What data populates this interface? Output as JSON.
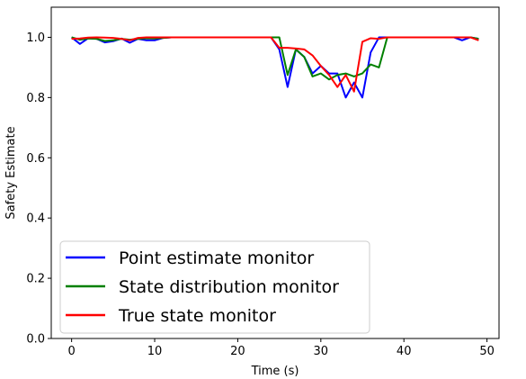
{
  "chart_data": {
    "type": "line",
    "xlabel": "Time (s)",
    "ylabel": "Safety Estimate",
    "xlim": [
      -2.45,
      51.45
    ],
    "ylim": [
      0.0,
      1.1
    ],
    "xticks": [
      0,
      10,
      20,
      30,
      40,
      50
    ],
    "yticks": [
      0.0,
      0.2,
      0.4,
      0.6,
      0.8,
      1.0
    ],
    "xtick_labels": [
      "0",
      "10",
      "20",
      "30",
      "40",
      "50"
    ],
    "ytick_labels": [
      "0.0",
      "0.2",
      "0.4",
      "0.6",
      "0.8",
      "1.0"
    ],
    "grid": false,
    "legend_position": "lower-left",
    "x": [
      0,
      1,
      2,
      3,
      4,
      5,
      6,
      7,
      8,
      9,
      10,
      11,
      12,
      13,
      14,
      15,
      16,
      17,
      18,
      19,
      20,
      21,
      22,
      23,
      24,
      25,
      26,
      27,
      28,
      29,
      30,
      31,
      32,
      33,
      34,
      35,
      36,
      37,
      38,
      39,
      40,
      41,
      42,
      43,
      44,
      45,
      46,
      47,
      48,
      49
    ],
    "series": [
      {
        "name": "Point estimate monitor",
        "color": "#0000ff",
        "values": [
          1.0,
          0.978,
          0.997,
          0.995,
          0.983,
          0.987,
          0.996,
          0.982,
          0.995,
          0.99,
          0.99,
          0.998,
          1.0,
          1.0,
          1.0,
          1.0,
          1.0,
          1.0,
          1.0,
          1.0,
          1.0,
          1.0,
          1.0,
          1.0,
          1.0,
          0.96,
          0.835,
          0.96,
          0.935,
          0.88,
          0.905,
          0.88,
          0.88,
          0.8,
          0.85,
          0.8,
          0.95,
          1.0,
          1.0,
          1.0,
          1.0,
          1.0,
          1.0,
          1.0,
          1.0,
          1.0,
          1.0,
          0.99,
          1.0,
          0.995
        ]
      },
      {
        "name": "State distribution monitor",
        "color": "#008000",
        "values": [
          1.0,
          0.992,
          0.996,
          0.995,
          0.988,
          0.99,
          0.995,
          0.992,
          0.995,
          0.997,
          0.996,
          0.998,
          1.0,
          1.0,
          1.0,
          1.0,
          1.0,
          1.0,
          1.0,
          1.0,
          1.0,
          1.0,
          1.0,
          1.0,
          1.0,
          1.0,
          0.875,
          0.96,
          0.935,
          0.87,
          0.88,
          0.86,
          0.875,
          0.88,
          0.87,
          0.88,
          0.91,
          0.9,
          1.0,
          1.0,
          1.0,
          1.0,
          1.0,
          1.0,
          1.0,
          1.0,
          1.0,
          1.0,
          1.0,
          0.995
        ]
      },
      {
        "name": "True state monitor",
        "color": "#ff0000",
        "values": [
          0.995,
          0.996,
          0.999,
          1.0,
          0.999,
          0.998,
          0.995,
          0.99,
          0.998,
          1.0,
          1.0,
          1.0,
          1.0,
          1.0,
          1.0,
          1.0,
          1.0,
          1.0,
          1.0,
          1.0,
          1.0,
          1.0,
          1.0,
          1.0,
          1.0,
          0.965,
          0.965,
          0.963,
          0.96,
          0.94,
          0.905,
          0.875,
          0.835,
          0.875,
          0.82,
          0.985,
          0.997,
          0.995,
          1.0,
          1.0,
          1.0,
          1.0,
          1.0,
          1.0,
          1.0,
          1.0,
          1.0,
          1.0,
          1.0,
          0.99
        ]
      }
    ]
  }
}
